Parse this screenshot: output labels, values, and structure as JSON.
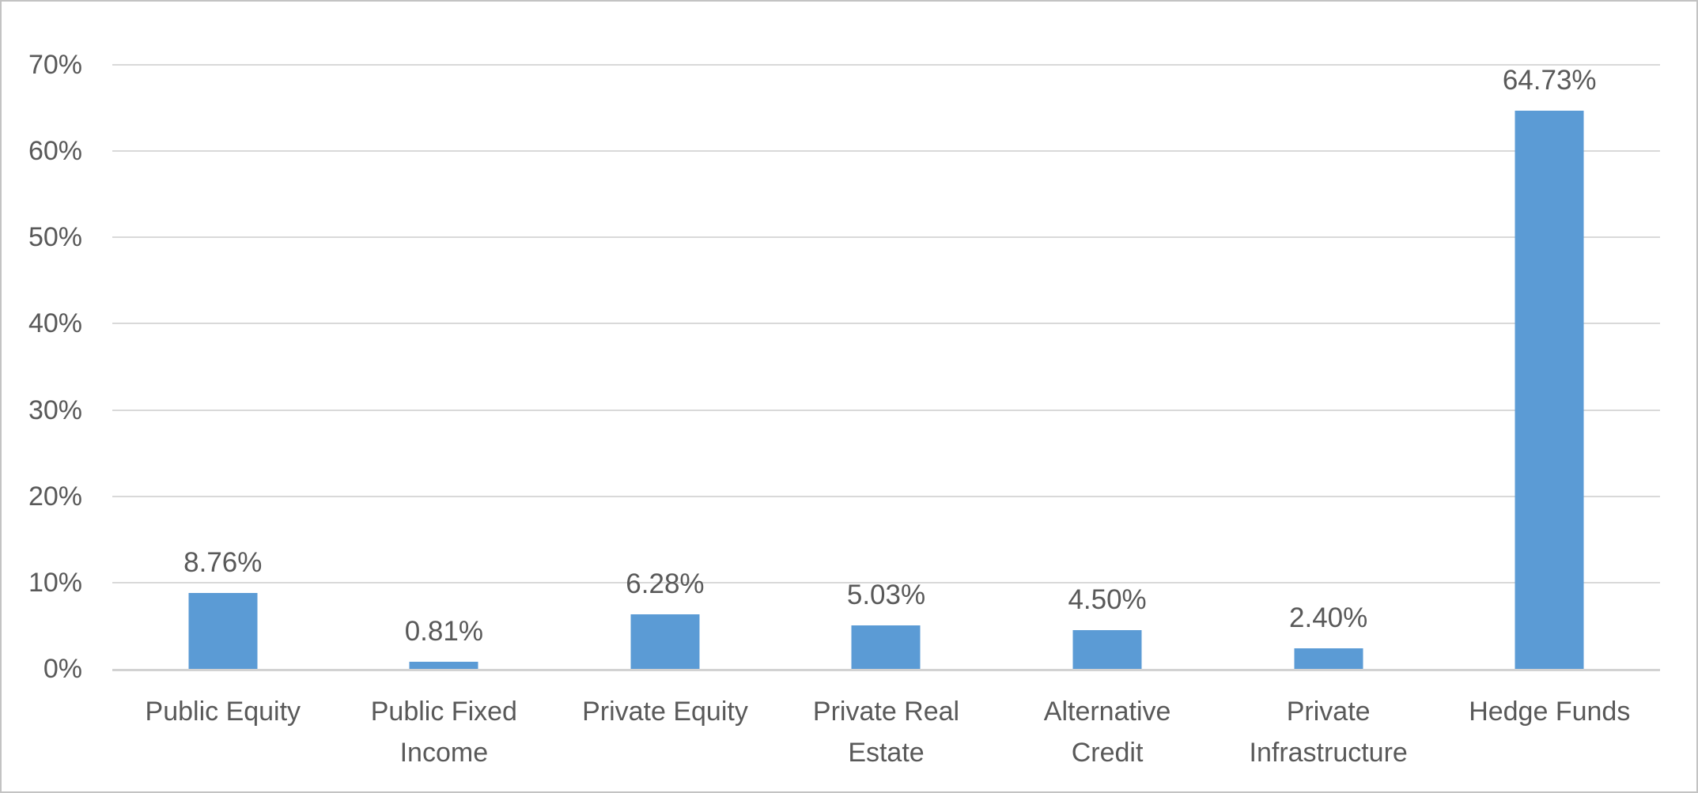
{
  "chart_data": {
    "type": "bar",
    "title": "",
    "categories": [
      "Public Equity",
      "Public Fixed Income",
      "Private Equity",
      "Private Real Estate",
      "Alternative Credit",
      "Private Infrastructure",
      "Hedge Funds"
    ],
    "values": [
      8.76,
      0.81,
      6.28,
      5.03,
      4.5,
      2.4,
      64.73
    ],
    "data_labels": [
      "8.76%",
      "0.81%",
      "6.28%",
      "5.03%",
      "4.50%",
      "2.40%",
      "64.73%"
    ],
    "y_tick_labels": [
      "0%",
      "10%",
      "20%",
      "30%",
      "40%",
      "50%",
      "60%",
      "70%"
    ],
    "ylim": [
      0,
      70
    ],
    "y_tick_step": 10,
    "xlabel": "",
    "ylabel": "",
    "legend": "none",
    "grid": "horizontal",
    "colors": {
      "bar": "#5B9BD5",
      "gridline": "#D9D9D9",
      "axis_line": "#D2D2D2",
      "text": "#595959",
      "background": "#FFFFFF",
      "border": "#C3C3C3"
    }
  }
}
